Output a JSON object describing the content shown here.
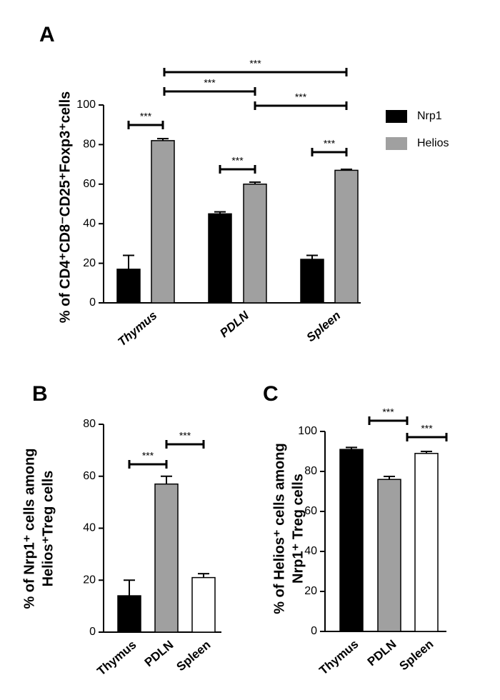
{
  "chart_data": [
    {
      "type": "bar",
      "panel_label": "A",
      "ylabel": [
        "% of CD4⁺CD8⁻CD25⁺Foxp3⁺cells"
      ],
      "categories": [
        "Thymus",
        "PDLN",
        "Spleen"
      ],
      "series": [
        {
          "name": "Nrp1",
          "color": "#000000",
          "values": [
            17,
            45,
            22
          ],
          "errors": [
            7,
            1,
            2
          ]
        },
        {
          "name": "Helios",
          "color": "#a0a0a0",
          "values": [
            82,
            60,
            67
          ],
          "errors": [
            1,
            1,
            0.5
          ]
        }
      ],
      "ylim": [
        0,
        100
      ],
      "yticks": [
        0,
        20,
        40,
        60,
        80,
        100
      ],
      "annotations": [
        "***",
        "***",
        "***",
        "***",
        "***",
        "***"
      ],
      "legend": "right"
    },
    {
      "type": "bar",
      "panel_label": "B",
      "ylabel": [
        "% of Nrp1⁺ cells among",
        "Helios⁺Treg cells"
      ],
      "categories": [
        "Thymus",
        "PDLN",
        "Spleen"
      ],
      "values": [
        14,
        57,
        21
      ],
      "errors": [
        6,
        3,
        1.5
      ],
      "colors": [
        "#000000",
        "#a0a0a0",
        "#ffffff"
      ],
      "ylim": [
        0,
        80
      ],
      "yticks": [
        0,
        20,
        40,
        60,
        80
      ],
      "annotations": [
        "***",
        "***"
      ]
    },
    {
      "type": "bar",
      "panel_label": "C",
      "ylabel": [
        "% of Helios⁺ cells among",
        "Nrp1⁺ Treg cells"
      ],
      "categories": [
        "Thymus",
        "PDLN",
        "Spleen"
      ],
      "values": [
        91,
        76,
        89
      ],
      "errors": [
        1,
        1.5,
        1
      ],
      "colors": [
        "#000000",
        "#a0a0a0",
        "#ffffff"
      ],
      "ylim": [
        0,
        100
      ],
      "yticks": [
        0,
        20,
        40,
        60,
        80,
        100
      ],
      "annotations": [
        "***",
        "***"
      ]
    }
  ]
}
